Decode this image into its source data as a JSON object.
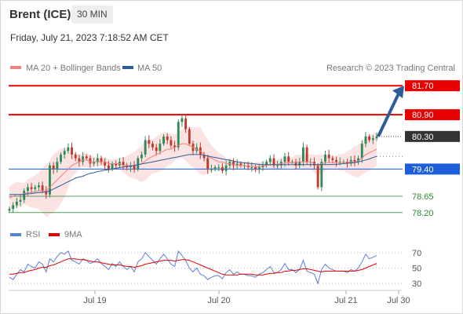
{
  "header": {
    "instrument": "Brent (ICE)",
    "timeframe": "30 MIN",
    "datetime": "Friday, July 21, 2023 7:18:52 AM CET"
  },
  "legend": {
    "ma20": "MA 20 + Bollinger Bands",
    "ma50": "MA 50",
    "copyright": "Research © 2023 Trading Central",
    "ma20_color": "#f08080",
    "ma50_color": "#2e5c9a"
  },
  "rsi_legend": {
    "rsi": "RSI",
    "ma": "9MA",
    "rsi_color": "#5b7fd6",
    "ma_color": "#e60000"
  },
  "chart_data": [
    {
      "type": "candlestick",
      "ylim": [
        78.0,
        81.9
      ],
      "levels": [
        {
          "value": 81.7,
          "label": "81.70",
          "style": "resistance",
          "color": "#e60000"
        },
        {
          "value": 80.9,
          "label": "80.90",
          "style": "resistance",
          "color": "#e60000"
        },
        {
          "value": 80.3,
          "label": "80.30",
          "style": "last",
          "color": "#333333"
        },
        {
          "value": 79.4,
          "label": "79.40",
          "style": "pivot",
          "color": "#1e5fd9"
        },
        {
          "value": 78.65,
          "label": "78.65",
          "style": "support",
          "color": "#2e8b2e"
        },
        {
          "value": 78.2,
          "label": "78.20",
          "style": "support",
          "color": "#2e8b2e"
        }
      ],
      "x_ticks": [
        "Jul 19",
        "Jul 20",
        "Jul 21",
        "Jul 30"
      ],
      "bull_color": "#2e8b57",
      "bear_color": "#c0392b",
      "close": [
        78.3,
        78.4,
        78.5,
        78.55,
        78.8,
        78.9,
        78.85,
        78.9,
        78.95,
        78.8,
        78.7,
        79.5,
        79.4,
        79.6,
        79.8,
        79.9,
        80.0,
        79.8,
        79.7,
        79.6,
        79.75,
        79.7,
        79.55,
        79.6,
        79.7,
        79.6,
        79.5,
        79.4,
        79.55,
        79.5,
        79.6,
        79.5,
        79.45,
        79.5,
        79.4,
        79.7,
        79.8,
        80.2,
        80.1,
        80.0,
        79.9,
        80.1,
        80.3,
        80.2,
        80.05,
        80.0,
        80.7,
        80.8,
        80.5,
        80.1,
        79.9,
        80.0,
        79.8,
        79.7,
        79.4,
        79.4,
        79.45,
        79.45,
        79.35,
        79.5,
        79.6,
        79.5,
        79.55,
        79.5,
        79.5,
        79.45,
        79.45,
        79.4,
        79.45,
        79.5,
        79.6,
        79.7,
        79.5,
        79.5,
        79.6,
        79.75,
        79.6,
        79.6,
        79.5,
        79.6,
        80.0,
        79.6,
        79.6,
        79.5,
        78.9,
        79.6,
        79.8,
        79.7,
        79.65,
        79.6,
        79.6,
        79.6,
        79.55,
        79.65,
        79.6,
        79.7,
        80.1,
        80.3,
        80.2,
        80.25,
        80.3
      ],
      "ma20": [
        78.6,
        78.65,
        78.7,
        78.7,
        78.72,
        78.75,
        78.75,
        78.78,
        78.8,
        78.8,
        78.8,
        78.9,
        79.0,
        79.1,
        79.2,
        79.3,
        79.4,
        79.5,
        79.55,
        79.6,
        79.65,
        79.65,
        79.6,
        79.6,
        79.6,
        79.6,
        79.6,
        79.55,
        79.55,
        79.55,
        79.55,
        79.5,
        79.5,
        79.5,
        79.5,
        79.52,
        79.55,
        79.62,
        79.7,
        79.75,
        79.8,
        79.85,
        79.9,
        79.95,
        79.95,
        80.0,
        80.05,
        80.1,
        80.1,
        80.05,
        80.0,
        79.95,
        79.9,
        79.8,
        79.75,
        79.7,
        79.65,
        79.6,
        79.6,
        79.55,
        79.55,
        79.52,
        79.5,
        79.5,
        79.5,
        79.48,
        79.48,
        79.47,
        79.47,
        79.48,
        79.5,
        79.52,
        79.52,
        79.53,
        79.55,
        79.57,
        79.57,
        79.58,
        79.58,
        79.6,
        79.6,
        79.6,
        79.6,
        79.55,
        79.5,
        79.55,
        79.57,
        79.58,
        79.58,
        79.58,
        79.58,
        79.59,
        79.59,
        79.6,
        79.6,
        79.62,
        79.7,
        79.8,
        79.85,
        79.9,
        79.95
      ],
      "ma50": [
        78.7,
        78.7,
        78.7,
        78.7,
        78.7,
        78.72,
        78.72,
        78.74,
        78.75,
        78.76,
        78.77,
        78.8,
        78.85,
        78.9,
        78.95,
        79.0,
        79.05,
        79.1,
        79.15,
        79.18,
        79.2,
        79.25,
        79.28,
        79.3,
        79.33,
        79.35,
        79.37,
        79.38,
        79.4,
        79.42,
        79.44,
        79.46,
        79.47,
        79.48,
        79.5,
        79.52,
        79.54,
        79.56,
        79.58,
        79.6,
        79.62,
        79.64,
        79.66,
        79.68,
        79.7,
        79.72,
        79.74,
        79.76,
        79.78,
        79.8,
        79.8,
        79.8,
        79.8,
        79.78,
        79.76,
        79.74,
        79.72,
        79.7,
        79.68,
        79.66,
        79.64,
        79.62,
        79.6,
        79.58,
        79.57,
        79.56,
        79.55,
        79.54,
        79.53,
        79.52,
        79.52,
        79.52,
        79.52,
        79.52,
        79.52,
        79.52,
        79.52,
        79.52,
        79.52,
        79.52,
        79.52,
        79.52,
        79.52,
        79.52,
        79.52,
        79.52,
        79.52,
        79.52,
        79.53,
        79.53,
        79.54,
        79.55,
        79.56,
        79.57,
        79.58,
        79.6,
        79.62,
        79.65,
        79.68,
        79.72,
        79.75
      ]
    },
    {
      "type": "line",
      "name": "RSI",
      "ylim": [
        25,
        80
      ],
      "y_ticks": [
        70,
        50,
        30
      ],
      "rsi": [
        38,
        35,
        42,
        48,
        45,
        55,
        52,
        50,
        58,
        55,
        45,
        62,
        58,
        65,
        70,
        68,
        72,
        60,
        58,
        55,
        62,
        60,
        56,
        58,
        62,
        56,
        52,
        48,
        56,
        52,
        58,
        52,
        48,
        52,
        45,
        58,
        62,
        70,
        65,
        60,
        55,
        62,
        68,
        62,
        55,
        52,
        72,
        66,
        60,
        50,
        45,
        50,
        42,
        40,
        35,
        38,
        40,
        40,
        36,
        44,
        48,
        42,
        45,
        42,
        42,
        40,
        40,
        38,
        42,
        44,
        48,
        52,
        44,
        44,
        48,
        56,
        48,
        48,
        44,
        48,
        60,
        46,
        44,
        42,
        30,
        48,
        55,
        50,
        48,
        46,
        46,
        46,
        44,
        48,
        46,
        50,
        58,
        68,
        62,
        64,
        66
      ],
      "ma9": [
        42,
        42,
        43,
        44,
        44,
        46,
        47,
        48,
        50,
        51,
        51,
        53,
        54,
        56,
        58,
        60,
        62,
        62,
        62,
        61,
        61,
        60,
        59,
        58,
        58,
        57,
        56,
        55,
        54,
        54,
        54,
        53,
        52,
        52,
        51,
        52,
        53,
        55,
        56,
        57,
        58,
        59,
        60,
        60,
        60,
        59,
        60,
        61,
        61,
        60,
        58,
        56,
        54,
        52,
        50,
        48,
        46,
        44,
        42,
        41,
        41,
        41,
        41,
        42,
        42,
        42,
        42,
        41,
        41,
        41,
        42,
        43,
        43,
        44,
        44,
        46,
        46,
        47,
        47,
        48,
        49,
        49,
        48,
        47,
        46,
        45,
        46,
        46,
        46,
        46,
        46,
        46,
        46,
        46,
        46,
        47,
        48,
        50,
        52,
        54,
        56
      ]
    }
  ]
}
